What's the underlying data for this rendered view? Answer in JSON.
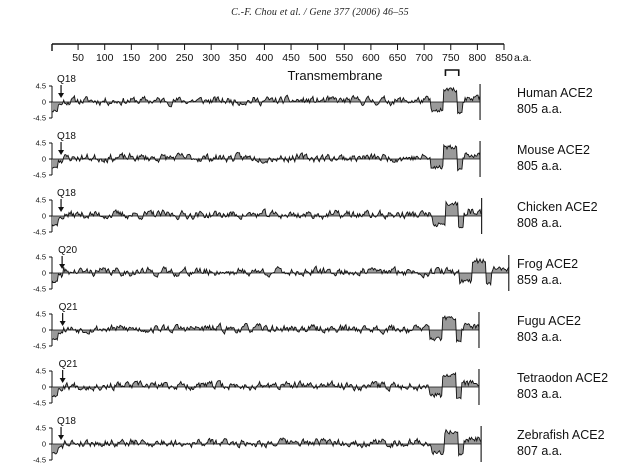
{
  "header": {
    "citation": "C.-F. Chou et al. / Gene 377 (2006) 46–55"
  },
  "chart_data": {
    "type": "area",
    "x_axis": {
      "range": [
        1,
        850
      ],
      "ticks": [
        50,
        100,
        150,
        200,
        250,
        300,
        350,
        400,
        450,
        500,
        550,
        600,
        650,
        700,
        750,
        800,
        850
      ],
      "unit_label": "a.a."
    },
    "y_axis": {
      "range": [
        -4.5,
        4.5
      ],
      "ticks": [
        {
          "value": 4.5,
          "label": "4.5"
        },
        {
          "value": 0,
          "label": "0"
        },
        {
          "value": -4.5,
          "label": "-4.5"
        }
      ]
    },
    "annotation": {
      "text": "Transmembrane",
      "bracket_range": [
        740,
        765
      ]
    },
    "tracks": [
      {
        "name": "Human ACE2",
        "length_label": "805 a.a.",
        "length": 805,
        "arrow_label": "Q18",
        "arrow_pos": 18,
        "seed": 11
      },
      {
        "name": "Mouse ACE2",
        "length_label": "805 a.a.",
        "length": 805,
        "arrow_label": "Q18",
        "arrow_pos": 18,
        "seed": 23
      },
      {
        "name": "Chicken ACE2",
        "length_label": "808 a.a.",
        "length": 808,
        "arrow_label": "Q18",
        "arrow_pos": 18,
        "seed": 37
      },
      {
        "name": "Frog ACE2",
        "length_label": "859 a.a.",
        "length": 859,
        "arrow_label": "Q20",
        "arrow_pos": 20,
        "seed": 41
      },
      {
        "name": "Fugu ACE2",
        "length_label": "803 a.a.",
        "length": 803,
        "arrow_label": "Q21",
        "arrow_pos": 21,
        "seed": 53
      },
      {
        "name": "Tetraodon ACE2",
        "length_label": "803 a.a.",
        "length": 803,
        "arrow_label": "Q21",
        "arrow_pos": 21,
        "seed": 67
      },
      {
        "name": "Zebrafish ACE2",
        "length_label": "807 a.a.",
        "length": 807,
        "arrow_label": "Q18",
        "arrow_pos": 18,
        "seed": 79
      }
    ]
  }
}
